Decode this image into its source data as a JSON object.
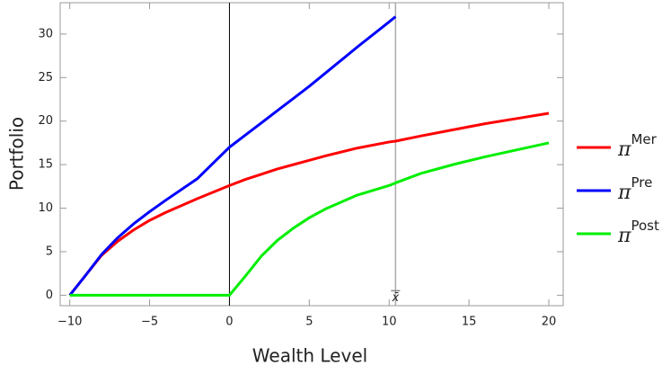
{
  "chart_data": {
    "type": "line",
    "x_label": "Wealth Level",
    "y_label": "Portfolio",
    "x": [
      -10,
      -9,
      -8,
      -7,
      -6,
      -5,
      -4,
      -2,
      0,
      1,
      2,
      3,
      4,
      5,
      6,
      8,
      10,
      10.4,
      12,
      14,
      16,
      18,
      20
    ],
    "series": [
      {
        "name": "π",
        "superscript": "Mer",
        "color": "#ff0000",
        "values": [
          0,
          2.3,
          4.6,
          6.2,
          7.5,
          8.6,
          9.5,
          11.1,
          12.6,
          13.3,
          13.9,
          14.5,
          15,
          15.5,
          16,
          16.9,
          17.6,
          17.7,
          18.3,
          19,
          19.7,
          20.3,
          20.9
        ]
      },
      {
        "name": "π",
        "superscript": "Pre",
        "color": "#0000ff",
        "values": [
          0,
          2.3,
          4.7,
          6.6,
          8.2,
          9.6,
          10.9,
          13.4,
          17,
          18.4,
          19.8,
          21.2,
          22.6,
          24,
          25.5,
          28.5,
          31.4,
          32,
          null,
          null,
          null,
          null,
          null
        ]
      },
      {
        "name": "π",
        "superscript": "Post",
        "color": "#00ee00",
        "values": [
          0,
          0,
          0,
          0,
          0,
          0,
          0,
          0,
          0,
          2.2,
          4.5,
          6.3,
          7.7,
          8.9,
          9.9,
          11.5,
          12.6,
          12.9,
          14,
          15,
          15.9,
          16.7,
          17.5
        ]
      }
    ],
    "xlim": [
      -10.6,
      20.9
    ],
    "ylim": [
      -1.2,
      33.6
    ],
    "xticks": [
      {
        "value": -10,
        "label": "−10"
      },
      {
        "value": -5,
        "label": "−5"
      },
      0,
      5,
      10,
      15,
      20
    ],
    "yticks": [
      0,
      5,
      10,
      15,
      20,
      25,
      30
    ],
    "annotations": [
      {
        "x": 10.4,
        "label": "x̄"
      }
    ],
    "legend": "right"
  }
}
